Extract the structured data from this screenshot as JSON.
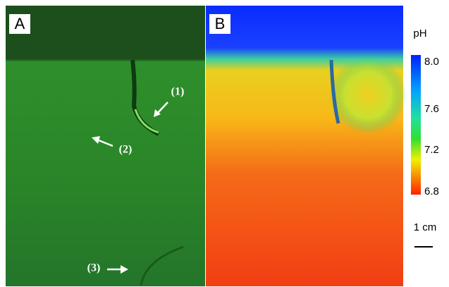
{
  "panels": [
    {
      "label": "A",
      "annotations": [
        "(1)",
        "(2)",
        "(3)"
      ]
    },
    {
      "label": "B"
    }
  ],
  "colorbar": {
    "title": "pH",
    "ticks": [
      "8.0",
      "7.6",
      "7.2",
      "6.8"
    ]
  },
  "scale_bar": {
    "label": "1 cm"
  }
}
